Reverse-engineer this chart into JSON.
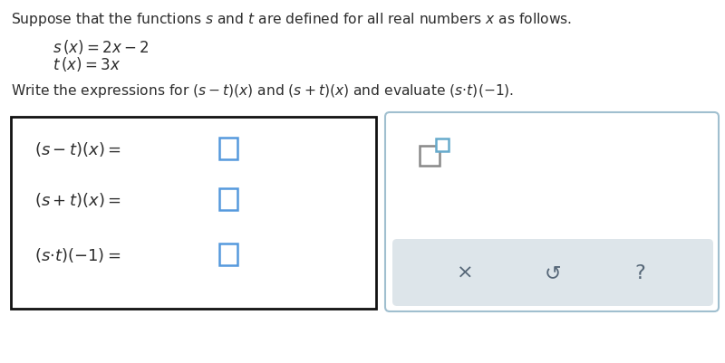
{
  "bg_color": "#ffffff",
  "text_color": "#2d2d2d",
  "title_line": "Suppose that the functions $s$ and $t$ are defined for all real numbers $x$ as follows.",
  "func1": "$s\\,(x)=2x-2$",
  "func2": "$t\\,(x)=3x$",
  "prompt": "Write the expressions for $(s-t)(x)$ and $(s+t)(x)$ and evaluate $(s{\\cdot}t)(-1)$.",
  "row1_label": "$(s-t)(x) =$",
  "row2_label": "$(s+t)(x) =$",
  "row3_label": "$(s{\\cdot}t)(-1) =$",
  "left_box_edge": "#111111",
  "right_box_edge": "#a0bfcf",
  "toolbar_bg": "#dde5ea",
  "input_box_color": "#5599dd",
  "sq_base_color": "#888888",
  "sq_sup_color": "#66aacc",
  "toolbar_icon_color": "#556677",
  "x_symbol": "×",
  "undo_symbol": "↺",
  "help_symbol": "?"
}
